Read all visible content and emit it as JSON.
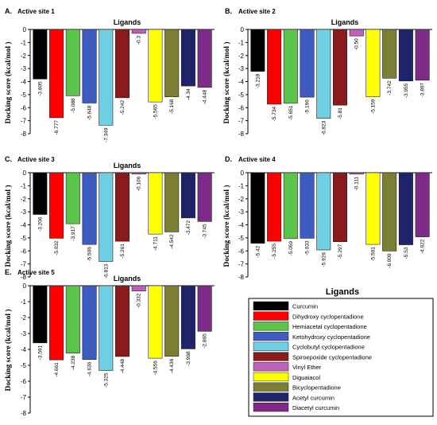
{
  "colors": [
    "#000000",
    "#ff0000",
    "#5cc44a",
    "#3e5cbf",
    "#6fd0e4",
    "#8b1a1a",
    "#c060b8",
    "#ffff00",
    "#7b7f35",
    "#1f2369",
    "#7f2a88"
  ],
  "legend": {
    "title": "Ligands",
    "items": [
      "Curcumin",
      "Dihydroxy cyclopentadione",
      "Hemiacetal cyclopentadione",
      "Ketohydroxy cyclopentadione",
      "Cyclobutyl cyclopentadione",
      "Spiroepoxide cyclopentadione",
      "Vinyl Ether",
      "Diguaiacol",
      "Bicyclopentadione",
      "Acetyl curcumin",
      "Diacetyl curcumin"
    ]
  },
  "chart_data": [
    {
      "type": "bar",
      "panel": "A.",
      "subtitle": "Active site 1",
      "title": "Ligands",
      "xlabel": "",
      "ylabel": "Docking score (kcal/mol )",
      "ylim": [
        -8,
        0
      ],
      "yticks": [
        "0",
        "-1",
        "-2",
        "-3",
        "-4",
        "-5",
        "-6",
        "-7",
        "-8"
      ],
      "values": [
        -3.805,
        -6.777,
        -5.088,
        -5.648,
        -7.349,
        -5.242,
        -0.3,
        -5.565,
        -5.168,
        -4.34,
        -4.448
      ],
      "value_labels": [
        "-3.805",
        "-6.777",
        "-5.088",
        "-5.648",
        "-7.349",
        "-5.242",
        "-0.3",
        "-5.565",
        "-5.168",
        "-4.34",
        "-4.448"
      ]
    },
    {
      "type": "bar",
      "panel": "B.",
      "subtitle": "Active site 2",
      "title": "Ligands",
      "xlabel": "",
      "ylabel": "Docking score (kcal/mol )",
      "ylim": [
        -8,
        0
      ],
      "yticks": [
        "0",
        "-1",
        "-2",
        "-3",
        "-4",
        "-5",
        "-6",
        "-7",
        "-8"
      ],
      "values": [
        -3.218,
        -5.734,
        -5.651,
        -5.196,
        -6.823,
        -5.81,
        -0.5,
        -5.159,
        -3.742,
        -3.955,
        -3.897
      ],
      "value_labels": [
        "-3.218",
        "-5.734",
        "-5.651",
        "-5.196",
        "-6.823",
        "-5.81",
        "-0.50",
        "-5.159",
        "-3.742",
        "-3.955",
        "-3.897"
      ]
    },
    {
      "type": "bar",
      "panel": "C.",
      "subtitle": "Active site 3",
      "title": "Ligands",
      "xlabel": "",
      "ylabel": "Docking score (kcal/mol )",
      "ylim": [
        -8,
        0
      ],
      "yticks": [
        "0",
        "-1",
        "-2",
        "-3",
        "-4",
        "-5",
        "-6",
        "-7",
        "-8"
      ],
      "values": [
        -3.206,
        -5.032,
        -3.917,
        -5.506,
        -6.813,
        -5.261,
        -0.106,
        -4.711,
        -4.542,
        -3.472,
        -3.745
      ],
      "value_labels": [
        "-3.206",
        "-5.032",
        "-3.917",
        "-5.506",
        "-6.813",
        "-5.261",
        "-0.106",
        "-4.711",
        "-4.542",
        "-3.472",
        "-3.745"
      ]
    },
    {
      "type": "bar",
      "panel": "D.",
      "subtitle": "Active site 4",
      "title": "",
      "xlabel": "",
      "ylabel": "Docking score (kcal/mol )",
      "ylim": [
        -8,
        0
      ],
      "yticks": [
        "0",
        "-1",
        "-2",
        "-3",
        "-4",
        "-5",
        "-6",
        "-7",
        "-8"
      ],
      "values": [
        -5.42,
        -5.255,
        -5.059,
        -5.033,
        -5.926,
        -5.297,
        -0.111,
        -5.501,
        -6.009,
        -5.53,
        -4.922
      ],
      "value_labels": [
        "-5.42",
        "-5.255",
        "-5.059",
        "-5.033",
        "-5.926",
        "-5.297",
        "-0.111",
        "-5.501",
        "-6.009",
        "-5.53",
        "-4.922"
      ]
    },
    {
      "type": "bar",
      "panel": "E.",
      "subtitle": "Active site 5",
      "title": "Ligands",
      "xlabel": "",
      "ylabel": "Docking score (kcal/mol )",
      "ylim": [
        -8,
        0
      ],
      "yticks": [
        "0",
        "-1",
        "-2",
        "-3",
        "-4",
        "-5",
        "-6",
        "-7",
        "-8"
      ],
      "values": [
        -3.591,
        -4.661,
        -4.238,
        -4.636,
        -5.325,
        -4.448,
        -0.332,
        -4.556,
        -4.436,
        -3.968,
        -2.865
      ],
      "value_labels": [
        "-3.591",
        "-4.661",
        "-4.238",
        "-4.636",
        "-5.325",
        "-4.448",
        "-0.332",
        "-4.556",
        "-4.436",
        "-3.968",
        "-2.865"
      ]
    }
  ]
}
